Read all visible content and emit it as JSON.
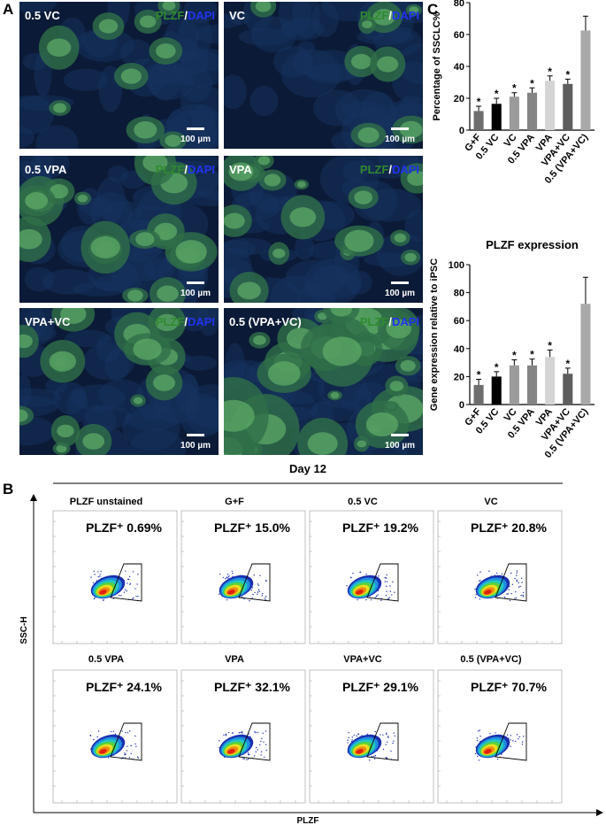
{
  "panel_a": {
    "letter": "A",
    "images": [
      {
        "label": "0.5 VC",
        "marker1": "PLZF",
        "slash": "/",
        "marker2": "DAPI",
        "scale_bar": "100 µm"
      },
      {
        "label": "VC",
        "marker1": "PLZF",
        "slash": "/",
        "marker2": "DAPI",
        "scale_bar": "100 µm"
      },
      {
        "label": "0.5 VPA",
        "marker1": "PLZF",
        "slash": "/",
        "marker2": "DAPI",
        "scale_bar": "100 µm"
      },
      {
        "label": "VPA",
        "marker1": "PLZF",
        "slash": "/",
        "marker2": "DAPI",
        "scale_bar": "100 µm"
      },
      {
        "label": "VPA+VC",
        "marker1": "PLZF",
        "slash": "/",
        "marker2": "DAPI",
        "scale_bar": "100 µm"
      },
      {
        "label": "0.5 (VPA+VC)",
        "marker1": "PLZF",
        "slash": "/",
        "marker2": "DAPI",
        "scale_bar": "100 µm"
      }
    ]
  },
  "panel_b": {
    "letter": "B",
    "title": "Day 12",
    "y_axis": "SSC-H",
    "x_axis": "PLZF",
    "plots": [
      {
        "title": "PLZF unstained",
        "gate": "PLZF⁺ 0.69%"
      },
      {
        "title": "G+F",
        "gate": "PLZF⁺ 15.0%"
      },
      {
        "title": "0.5 VC",
        "gate": "PLZF⁺ 19.2%"
      },
      {
        "title": "VC",
        "gate": "PLZF⁺ 20.8%"
      },
      {
        "title": "0.5 VPA",
        "gate": "PLZF⁺ 24.1%"
      },
      {
        "title": "VPA",
        "gate": "PLZF⁺ 32.1%"
      },
      {
        "title": "VPA+VC",
        "gate": "PLZF⁺ 29.1%"
      },
      {
        "title": "0.5 (VPA+VC)",
        "gate": "PLZF⁺ 70.7%"
      }
    ]
  },
  "panel_c": {
    "letter": "C"
  },
  "chart_data": [
    {
      "type": "bar",
      "y_label": "Percentage of SSCLC%",
      "categories": [
        "G+F",
        "0.5 VC",
        "VC",
        "0.5 VPA",
        "VPA",
        "VPA+VC",
        "0.5 (VPA+VC)"
      ],
      "values": [
        12,
        16.5,
        21,
        23.5,
        31,
        29,
        62.5
      ],
      "errors": [
        3,
        3.5,
        2.5,
        3,
        3,
        3,
        9
      ],
      "significance": [
        "*",
        "*",
        "*",
        "*",
        "*",
        "*",
        null
      ],
      "colors": [
        "#6e6e6e",
        "#000000",
        "#9b9b9b",
        "#858585",
        "#d4d4d4",
        "#5e5e5e",
        "#a9a9a9"
      ],
      "ylim": [
        0,
        80
      ],
      "yticks": [
        0,
        20,
        40,
        60,
        80
      ]
    },
    {
      "type": "bar",
      "title": "PLZF expression",
      "y_label": "Gene expression relative to iPSC",
      "categories": [
        "G+F",
        "0.5 VC",
        "VC",
        "0.5 VPA",
        "VPA",
        "VPA+VC",
        "0.5 (VPA+VC)"
      ],
      "values": [
        14,
        20,
        28,
        28,
        34,
        22,
        72
      ],
      "errors": [
        4,
        3.5,
        4,
        4.5,
        5,
        4,
        19
      ],
      "significance": [
        "*",
        "*",
        "*",
        "*",
        "*",
        "*",
        null
      ],
      "colors": [
        "#6e6e6e",
        "#000000",
        "#9b9b9b",
        "#858585",
        "#d4d4d4",
        "#5e5e5e",
        "#a9a9a9"
      ],
      "ylim": [
        0,
        100
      ],
      "yticks": [
        0,
        20,
        40,
        60,
        80,
        100
      ]
    }
  ]
}
